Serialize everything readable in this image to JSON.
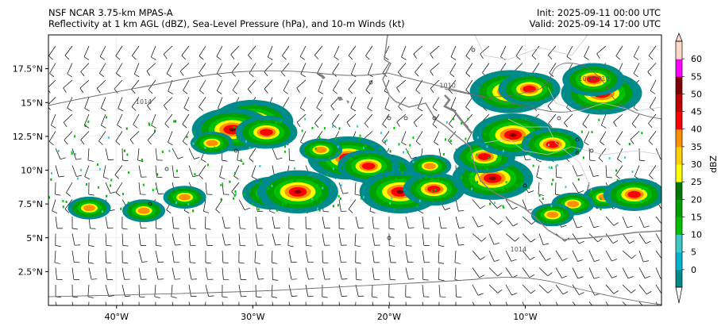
{
  "header": {
    "model": "NSF NCAR 3.75-km MPAS-A",
    "fields": "Reflectivity at 1 km AGL (dBZ), Sea-Level Pressure (hPa), and 10-m Winds (kt)",
    "init": "Init: 2025-09-11 00:00 UTC",
    "valid": "Valid: 2025-09-14 17:00 UTC"
  },
  "map": {
    "lat_ticks": [
      {
        "lat": 17.5,
        "label": "17.5°N"
      },
      {
        "lat": 15,
        "label": "15°N"
      },
      {
        "lat": 12.5,
        "label": "12.5°N"
      },
      {
        "lat": 10,
        "label": "10°N"
      },
      {
        "lat": 7.5,
        "label": "7.5°N"
      },
      {
        "lat": 5,
        "label": "5°N"
      },
      {
        "lat": 2.5,
        "label": "2.5°N"
      }
    ],
    "lon_ticks": [
      {
        "lon": -40,
        "label": "40°W"
      },
      {
        "lon": -30,
        "label": "30°W"
      },
      {
        "lon": -20,
        "label": "20°W"
      },
      {
        "lon": -10,
        "label": "10°W"
      }
    ],
    "lon_range": [
      -45,
      0
    ],
    "lat_range": [
      0,
      20
    ],
    "isobar_labels": [
      {
        "text": "1014",
        "lon": -38,
        "lat": 14.9
      },
      {
        "text": "1010",
        "lon": -15.7,
        "lat": 16.1
      },
      {
        "text": "1014",
        "lon": -10.5,
        "lat": 4.0
      },
      {
        "text": "1006",
        "lon": -5.5,
        "lat": 16.6
      },
      {
        "text": "1010",
        "lon": -4.4,
        "lat": 16.6
      }
    ],
    "land_color": "#ffffff",
    "coast_color": "#808080"
  },
  "colorbar": {
    "label": "dBZ",
    "ticks": [
      "0",
      "5",
      "10",
      "15",
      "20",
      "25",
      "30",
      "35",
      "40",
      "45",
      "50",
      "55",
      "60"
    ],
    "colors": [
      "#008b8b",
      "#00b4d0",
      "#3ec8c8",
      "#00c000",
      "#00a000",
      "#007800",
      "#ffff00",
      "#ffd000",
      "#ff9000",
      "#ff0000",
      "#c00000",
      "#800000",
      "#ff00ff",
      "#ffd8c8"
    ]
  },
  "cells": [
    {
      "lon": -30,
      "lat": 13.6,
      "intensity": 3
    },
    {
      "lon": -31.5,
      "lat": 13.0,
      "intensity": 3
    },
    {
      "lon": -29,
      "lat": 12.8,
      "intensity": 2
    },
    {
      "lon": -23,
      "lat": 10.9,
      "intensity": 3
    },
    {
      "lon": -20.5,
      "lat": 10.0,
      "intensity": 2
    },
    {
      "lon": -21.5,
      "lat": 10.3,
      "intensity": 2
    },
    {
      "lon": -19.2,
      "lat": 8.4,
      "intensity": 3
    },
    {
      "lon": -16.7,
      "lat": 8.6,
      "intensity": 2
    },
    {
      "lon": -28.5,
      "lat": 8.3,
      "intensity": 2
    },
    {
      "lon": -26.7,
      "lat": 8.4,
      "intensity": 3
    },
    {
      "lon": -35.0,
      "lat": 8.0,
      "intensity": 1
    },
    {
      "lon": -38.0,
      "lat": 7.0,
      "intensity": 1
    },
    {
      "lon": -12.4,
      "lat": 9.4,
      "intensity": 3
    },
    {
      "lon": -13.0,
      "lat": 11.0,
      "intensity": 2
    },
    {
      "lon": -10.9,
      "lat": 12.6,
      "intensity": 3
    },
    {
      "lon": -8.0,
      "lat": 11.9,
      "intensity": 2
    },
    {
      "lon": -11.1,
      "lat": 15.8,
      "intensity": 3
    },
    {
      "lon": -9.7,
      "lat": 16.0,
      "intensity": 2
    },
    {
      "lon": -4.4,
      "lat": 15.7,
      "intensity": 3
    },
    {
      "lon": -5.0,
      "lat": 16.7,
      "intensity": 2
    },
    {
      "lon": -4.2,
      "lat": 8.0,
      "intensity": 1
    },
    {
      "lon": -2.0,
      "lat": 8.2,
      "intensity": 2
    },
    {
      "lon": -6.5,
      "lat": 7.5,
      "intensity": 1
    },
    {
      "lon": -8.0,
      "lat": 6.7,
      "intensity": 1
    },
    {
      "lon": -25.0,
      "lat": 11.5,
      "intensity": 1
    },
    {
      "lon": -33.0,
      "lat": 12.0,
      "intensity": 1
    },
    {
      "lon": -42.0,
      "lat": 7.2,
      "intensity": 1
    },
    {
      "lon": -17.0,
      "lat": 10.3,
      "intensity": 1
    }
  ]
}
